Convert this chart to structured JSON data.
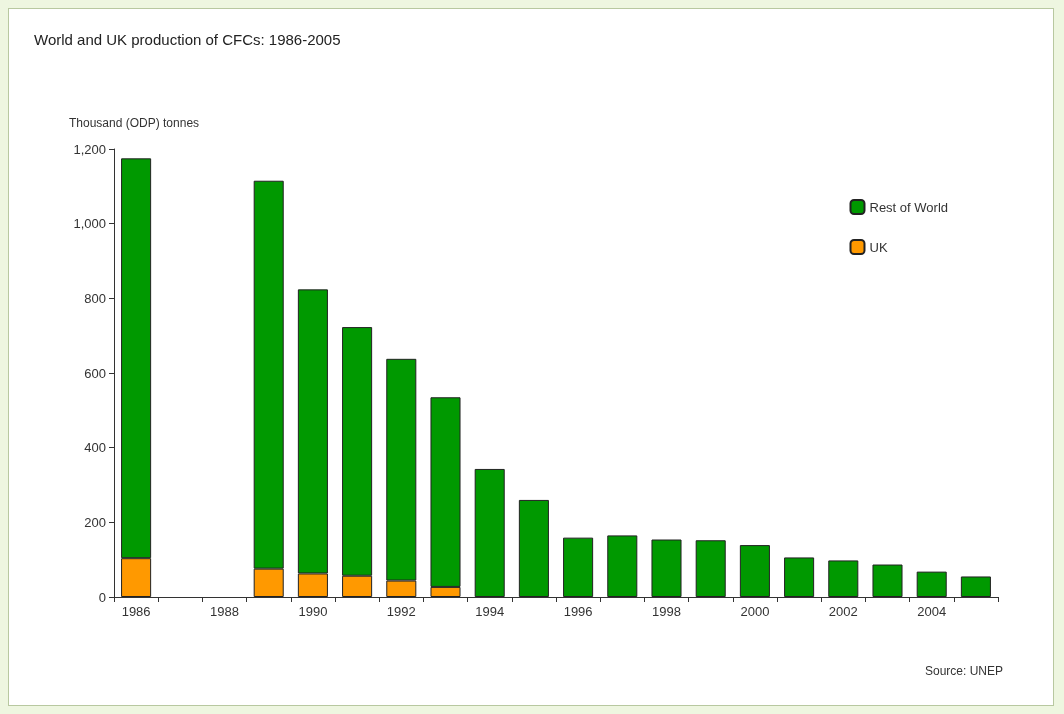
{
  "chart_data": {
    "type": "bar",
    "title": "World and UK production of CFCs: 1986-2005",
    "ylabel": "Thousand (ODP) tonnes",
    "categories": [
      "1986",
      null,
      "1988",
      null,
      "1990",
      null,
      "1992",
      null,
      "1994",
      null,
      "1996",
      null,
      "1998",
      null,
      "2000",
      null,
      "2002",
      null,
      "2004",
      null
    ],
    "series": [
      {
        "name": "UK",
        "color": "#ff9900",
        "values": [
          104,
          null,
          null,
          76,
          63,
          57,
          44,
          27,
          null,
          null,
          null,
          null,
          null,
          null,
          null,
          null,
          null,
          null,
          null,
          null
        ]
      },
      {
        "name": "Rest of World",
        "color": "#009900",
        "values": [
          1071,
          null,
          null,
          1039,
          761,
          666,
          594,
          508,
          343,
          260,
          159,
          165,
          154,
          152,
          139,
          106,
          98,
          87,
          68,
          55
        ]
      }
    ],
    "stacked": true,
    "ylim": [
      0,
      1200
    ],
    "yticks": [
      0,
      {
        "value": 200,
        "label": "200"
      },
      {
        "value": 400,
        "label": "400"
      },
      {
        "value": 600,
        "label": "600"
      },
      {
        "value": 800,
        "label": "800"
      },
      {
        "value": 1000,
        "label": "1,000"
      },
      {
        "value": 1200,
        "label": "1,200"
      }
    ],
    "grid": false,
    "legend": "top right",
    "annotations": [
      "Source: UNEP"
    ]
  }
}
